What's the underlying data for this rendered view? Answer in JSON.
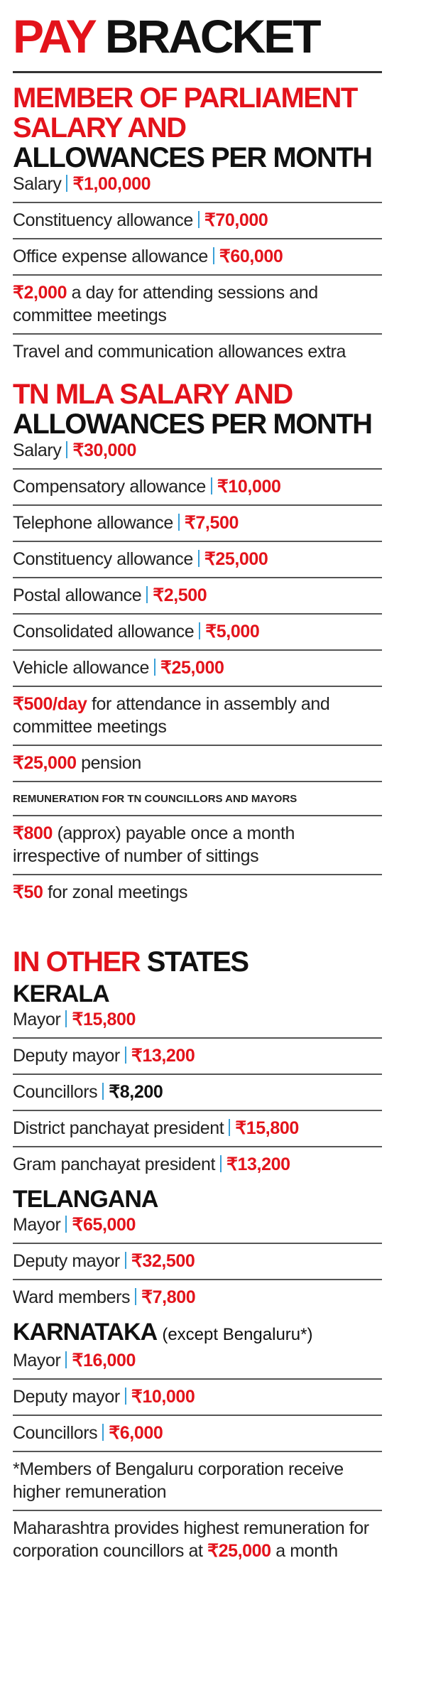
{
  "header": {
    "title_red": "PAY",
    "title_black": "BRACKET"
  },
  "sections": [
    {
      "heading": [
        [
          {
            "text": "MEMBER OF PARLIAMENT",
            "color": "red"
          }
        ],
        [
          {
            "text": "SALARY AND",
            "color": "red"
          }
        ],
        [
          {
            "text": "ALLOWANCES PER MONTH",
            "color": "black"
          }
        ]
      ],
      "blocks": [
        {
          "kind": "row",
          "label": "Salary",
          "amount": "₹1,00,000"
        },
        {
          "kind": "row",
          "label": "Constituency allowance",
          "amount": "₹70,000"
        },
        {
          "kind": "row",
          "label": "Office expense allowance",
          "amount": "₹60,000"
        },
        {
          "kind": "row",
          "amount": "₹2,000",
          "text": "a day for attending sessions and committee meetings"
        },
        {
          "kind": "row",
          "text": "Travel and communication allowances extra"
        }
      ]
    },
    {
      "heading": [
        [
          {
            "text": "TN MLA SALARY AND",
            "color": "red"
          }
        ],
        [
          {
            "text": "ALLOWANCES PER MONTH",
            "color": "black"
          }
        ]
      ],
      "blocks": [
        {
          "kind": "row",
          "label": "Salary",
          "amount": "₹30,000"
        },
        {
          "kind": "row",
          "label": "Compensatory allowance",
          "amount": "₹10,000"
        },
        {
          "kind": "row",
          "label": "Telephone allowance",
          "amount": "₹7,500"
        },
        {
          "kind": "row",
          "label": "Constituency allowance",
          "amount": "₹25,000"
        },
        {
          "kind": "row",
          "label": "Postal allowance",
          "amount": "₹2,500"
        },
        {
          "kind": "row",
          "label": "Consolidated allowance",
          "amount": "₹5,000"
        },
        {
          "kind": "row",
          "label": "Vehicle allowance",
          "amount": "₹25,000"
        },
        {
          "kind": "row",
          "amount": "₹500/day",
          "text": "for attendance in assembly and committee meetings"
        },
        {
          "kind": "row",
          "amount": "₹25,000",
          "text": "pension"
        },
        {
          "kind": "caption",
          "text": "REMUNERATION FOR TN COUNCILLORS AND MAYORS"
        },
        {
          "kind": "row",
          "amount": "₹800",
          "text": "(approx) payable once a month irrespective of number of sittings"
        },
        {
          "kind": "row",
          "amount": "₹50",
          "text": "for zonal meetings"
        }
      ]
    },
    {
      "heading": [
        [
          {
            "text": "IN OTHER",
            "color": "red"
          },
          {
            "text": "STATES",
            "color": "black"
          }
        ]
      ],
      "blocks": [
        {
          "kind": "subheading",
          "text": "KERALA"
        },
        {
          "kind": "row",
          "label": "Mayor",
          "amount": "₹15,800"
        },
        {
          "kind": "row",
          "label": "Deputy mayor",
          "amount": "₹13,200"
        },
        {
          "kind": "row",
          "label": "Councillors",
          "amount": "₹8,200",
          "amount_color": "#111111"
        },
        {
          "kind": "row",
          "label": "District panchayat president",
          "amount": "₹15,800"
        },
        {
          "kind": "row",
          "label": "Gram panchayat president",
          "amount": "₹13,200"
        },
        {
          "kind": "subheading",
          "text": "TELANGANA"
        },
        {
          "kind": "row",
          "label": "Mayor",
          "amount": "₹65,000"
        },
        {
          "kind": "row",
          "label": "Deputy mayor",
          "amount": "₹32,500"
        },
        {
          "kind": "row",
          "label": "Ward members",
          "amount": "₹7,800"
        },
        {
          "kind": "subheading",
          "text": "KARNATAKA",
          "note": "(except Bengaluru*)"
        },
        {
          "kind": "row",
          "label": "Mayor",
          "amount": "₹16,000"
        },
        {
          "kind": "row",
          "label": "Deputy mayor",
          "amount": "₹10,000"
        },
        {
          "kind": "row",
          "label": "Councillors",
          "amount": "₹6,000"
        },
        {
          "kind": "row",
          "text": "*Members of Bengaluru corporation receive higher remuneration"
        },
        {
          "kind": "row",
          "pre": "Maharashtra provides highest remuneration for corporation councillors at",
          "amount": "₹25,000",
          "text": "a month"
        }
      ]
    }
  ]
}
